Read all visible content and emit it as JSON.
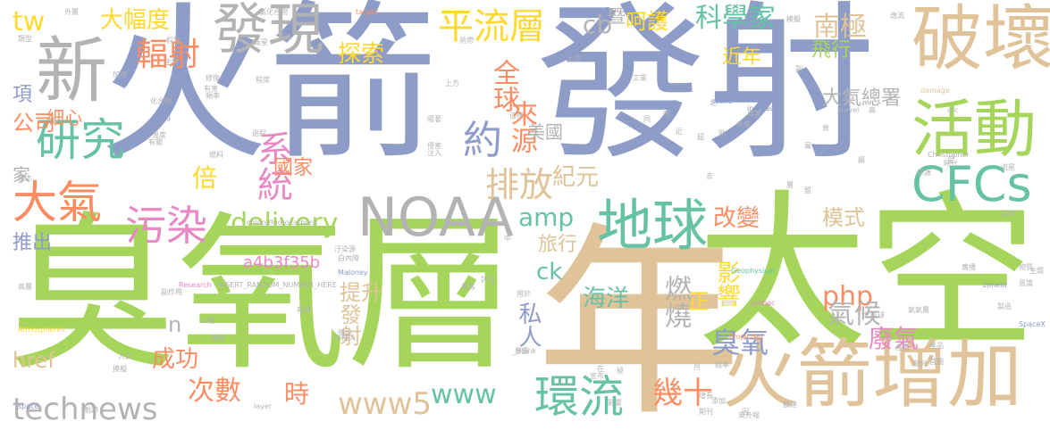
{
  "palette": {
    "blue": "#8e9cc8",
    "green": "#a5d65b",
    "tan": "#e0c398",
    "teal": "#66c2a5",
    "pink": "#e78ac3",
    "orange": "#fc8d62",
    "yellow": "#ffd92f",
    "gray": "#b3b3b3"
  },
  "words": [
    {
      "text": "火箭",
      "color": "#8e9cc8"
    },
    {
      "text": "發射",
      "color": "#8e9cc8"
    },
    {
      "text": "臭氧層",
      "color": "#a5d65b"
    },
    {
      "text": "太空",
      "color": "#a5d65b"
    },
    {
      "text": "年",
      "color": "#e0c398"
    },
    {
      "text": "破壞",
      "color": "#e0c398"
    },
    {
      "text": "火箭增加",
      "color": "#e0c398"
    },
    {
      "text": "NOAA",
      "color": "#b3b3b3"
    },
    {
      "text": "新",
      "color": "#b3b3b3"
    },
    {
      "text": "發現",
      "color": "#b3b3b3"
    },
    {
      "text": "活動",
      "color": "#a5d65b"
    },
    {
      "text": "CFCs",
      "color": "#66c2a5"
    },
    {
      "text": "地球",
      "color": "#66c2a5"
    },
    {
      "text": "環流",
      "color": "#66c2a5"
    },
    {
      "text": "研究",
      "color": "#66c2a5"
    },
    {
      "text": "大氣",
      "color": "#fc8d62"
    },
    {
      "text": "污染",
      "color": "#e78ac3"
    },
    {
      "text": "平流層",
      "color": "#ffd92f"
    },
    {
      "text": "delivery",
      "color": "#a5d65b"
    },
    {
      "text": "technews",
      "color": "#b3b3b3"
    },
    {
      "text": "www5",
      "color": "#e0c398"
    },
    {
      "text": "www",
      "color": "#66c2a5"
    },
    {
      "text": "排放",
      "color": "#e0c398"
    },
    {
      "text": "amp",
      "color": "#66c2a5"
    },
    {
      "text": "php",
      "color": "#fc8d62"
    },
    {
      "text": "約",
      "color": "#8e9cc8"
    },
    {
      "text": "輻射",
      "color": "#fc8d62"
    },
    {
      "text": "系統",
      "color": "#e78ac3"
    },
    {
      "text": "科學家",
      "color": "#66c2a5"
    },
    {
      "text": "南極",
      "color": "#e0c398"
    },
    {
      "text": "cb",
      "color": "#b3b3b3"
    },
    {
      "text": "呵護",
      "color": "#ffd92f"
    },
    {
      "text": "大幅度",
      "color": "#ffd92f"
    },
    {
      "text": "探索",
      "color": "#ffd92f"
    },
    {
      "text": "全球",
      "color": "#fc8d62"
    },
    {
      "text": "來源",
      "color": "#fc8d62"
    },
    {
      "text": "飛行",
      "color": "#a5d65b"
    },
    {
      "text": "近年",
      "color": "#ffd92f"
    },
    {
      "text": "大氣總署",
      "color": "#b3b3b3"
    },
    {
      "text": "美國",
      "color": "#b3b3b3"
    },
    {
      "text": "紀元",
      "color": "#e0c398"
    },
    {
      "text": "國家",
      "color": "#fc8d62"
    },
    {
      "text": "倍",
      "color": "#ffd92f"
    },
    {
      "text": "公司",
      "color": "#fc8d62"
    },
    {
      "text": "細心",
      "color": "#fc8d62"
    },
    {
      "text": "項",
      "color": "#8e9cc8"
    },
    {
      "text": "家",
      "color": "#b3b3b3"
    },
    {
      "text": "推出",
      "color": "#8e9cc8"
    },
    {
      "text": "tw",
      "color": "#ffd92f"
    },
    {
      "text": "暨",
      "color": "#b3b3b3"
    },
    {
      "text": "a",
      "color": "#8e9cc8"
    },
    {
      "text": "改變",
      "color": "#fc8d62"
    },
    {
      "text": "模式",
      "color": "#e0c398"
    },
    {
      "text": "影響",
      "color": "#ffd92f"
    },
    {
      "text": "氣候",
      "color": "#b3b3b3"
    },
    {
      "text": "廢氣",
      "color": "#e78ac3"
    },
    {
      "text": "臭氧",
      "color": "#8e9cc8"
    },
    {
      "text": "燃燒",
      "color": "#b3b3b3"
    },
    {
      "text": "海洋",
      "color": "#66c2a5"
    },
    {
      "text": "正",
      "color": "#ffd92f"
    },
    {
      "text": "旅行",
      "color": "#e0c398"
    },
    {
      "text": "ck",
      "color": "#66c2a5"
    },
    {
      "text": "提升",
      "color": "#e0c398"
    },
    {
      "text": "發射",
      "color": "#e0c398"
    },
    {
      "text": "私人",
      "color": "#8e9cc8"
    },
    {
      "text": "成功",
      "color": "#fc8d62"
    },
    {
      "text": "次數",
      "color": "#fc8d62"
    },
    {
      "text": "時",
      "color": "#fc8d62"
    },
    {
      "text": "幾十",
      "color": "#fc8d62"
    },
    {
      "text": "href",
      "color": "#e0c398"
    },
    {
      "text": "n",
      "color": "#b3b3b3"
    },
    {
      "text": "a4b3f35b",
      "color": "#e78ac3"
    },
    {
      "text": "INSERT_RANDOM_NUMBER_HERE",
      "color": "#b3b3b3"
    },
    {
      "text": "chlorofluorocarbons",
      "color": "#b3b3b3"
    },
    {
      "text": "Research",
      "color": "#e78ac3"
    },
    {
      "text": "Maloney",
      "color": "#8e9cc8"
    },
    {
      "text": "Atmospheres",
      "color": "#ffd92f"
    },
    {
      "text": "Geophysical",
      "color": "#66c2a5"
    },
    {
      "text": "Christopher",
      "color": "#b3b3b3"
    },
    {
      "text": "target",
      "color": "#fc8d62"
    },
    {
      "text": "ozone",
      "color": "#8e9cc8"
    },
    {
      "text": "increase",
      "color": "#8e9cc8"
    },
    {
      "text": "travel",
      "color": "#b3b3b3"
    },
    {
      "text": "damage",
      "color": "#e0c398"
    },
    {
      "text": "zoneid",
      "color": "#8e9cc8"
    },
    {
      "text": "SpaceX",
      "color": "#8e9cc8"
    },
    {
      "text": "Projected",
      "color": "#fc8d62"
    },
    {
      "text": "_blank",
      "color": "#b3b3b3"
    },
    {
      "text": "img",
      "color": "#8e9cc8"
    },
    {
      "text": "space",
      "color": "#8e9cc8"
    },
    {
      "text": "layer",
      "color": "#b3b3b3"
    },
    {
      "text": "prebac",
      "color": "#e78ac3"
    },
    {
      "text": "外層",
      "color": "#b3b3b3"
    },
    {
      "text": "氯化合物",
      "color": "#b3b3b3"
    },
    {
      "text": "類型",
      "color": "#b3b3b3"
    },
    {
      "text": "生物",
      "color": "#b3b3b3"
    },
    {
      "text": "加速",
      "color": "#b3b3b3"
    },
    {
      "text": "化合物",
      "color": "#b3b3b3"
    },
    {
      "text": "溫度",
      "color": "#b3b3b3"
    },
    {
      "text": "有關",
      "color": "#b3b3b3"
    },
    {
      "text": "修復",
      "color": "#b3b3b3"
    },
    {
      "text": "有害",
      "color": "#b3b3b3"
    },
    {
      "text": "頻率",
      "color": "#b3b3b3"
    },
    {
      "text": "衛星",
      "color": "#b3b3b3"
    },
    {
      "text": "程度",
      "color": "#b3b3b3"
    },
    {
      "text": "燃料",
      "color": "#b3b3b3"
    },
    {
      "text": "航太",
      "color": "#b3b3b3"
    },
    {
      "text": "過程",
      "color": "#b3b3b3"
    },
    {
      "text": "高層",
      "color": "#b3b3b3"
    },
    {
      "text": "副作用",
      "color": "#b3b3b3"
    },
    {
      "text": "公報",
      "color": "#b3b3b3"
    },
    {
      "text": "團隊",
      "color": "#b3b3b3"
    },
    {
      "text": "軌跡",
      "color": "#b3b3b3"
    },
    {
      "text": "入口",
      "color": "#b3b3b3"
    },
    {
      "text": "摸擬",
      "color": "#b3b3b3"
    },
    {
      "text": "北半球",
      "color": "#b3b3b3"
    },
    {
      "text": "時代",
      "color": "#b3b3b3"
    },
    {
      "text": "保護",
      "color": "#b3b3b3"
    },
    {
      "text": "廣播",
      "color": "#b3b3b3"
    },
    {
      "text": "流星",
      "color": "#b3b3b3"
    },
    {
      "text": "物質",
      "color": "#b3b3b3"
    },
    {
      "text": "意識",
      "color": "#b3b3b3"
    },
    {
      "text": "主題",
      "color": "#b3b3b3"
    },
    {
      "text": "延伸",
      "color": "#b3b3b3"
    },
    {
      "text": "首圖",
      "color": "#b3b3b3"
    },
    {
      "text": "產品",
      "color": "#b3b3b3"
    },
    {
      "text": "產量",
      "color": "#b3b3b3"
    },
    {
      "text": "標準",
      "color": "#b3b3b3"
    },
    {
      "text": "增長",
      "color": "#b3b3b3"
    },
    {
      "text": "添加",
      "color": "#b3b3b3"
    },
    {
      "text": "期刊",
      "color": "#b3b3b3"
    },
    {
      "text": "英外報",
      "color": "#b3b3b3"
    },
    {
      "text": "乘客",
      "color": "#b3b3b3"
    },
    {
      "text": "侵害",
      "color": "#b3b3b3"
    },
    {
      "text": "注入",
      "color": "#b3b3b3"
    },
    {
      "text": "工業",
      "color": "#b3b3b3"
    },
    {
      "text": "上方",
      "color": "#b3b3b3"
    },
    {
      "text": "上空",
      "color": "#b3b3b3"
    },
    {
      "text": "熱帶",
      "color": "#b3b3b3"
    },
    {
      "text": "這樣",
      "color": "#b3b3b3"
    },
    {
      "text": "隨著",
      "color": "#b3b3b3"
    },
    {
      "text": "報導",
      "color": "#b3b3b3"
    },
    {
      "text": "傳說",
      "color": "#b3b3b3"
    },
    {
      "text": "半球人",
      "color": "#b3b3b3"
    },
    {
      "text": "汙染源",
      "color": "#b3b3b3"
    },
    {
      "text": "白內障",
      "color": "#b3b3b3"
    },
    {
      "text": "唯一",
      "color": "#b3b3b3"
    },
    {
      "text": "用於",
      "color": "#b3b3b3"
    },
    {
      "text": "評估",
      "color": "#b3b3b3"
    },
    {
      "text": "宣布",
      "color": "#b3b3b3"
    },
    {
      "text": "影響",
      "color": "#b3b3b3"
    },
    {
      "text": "暴露",
      "color": "#b3b3b3"
    },
    {
      "text": "再度",
      "color": "#b3b3b3"
    },
    {
      "text": "未來",
      "color": "#b3b3b3"
    },
    {
      "text": "擴建",
      "color": "#b3b3b3"
    },
    {
      "text": "額外",
      "color": "#b3b3b3"
    },
    {
      "text": "氣氣層",
      "color": "#b3b3b3"
    },
    {
      "text": "製造",
      "color": "#b3b3b3"
    },
    {
      "text": "逸流",
      "color": "#b3b3b3"
    },
    {
      "text": "模擬",
      "color": "#b3b3b3"
    },
    {
      "text": "假設",
      "color": "#b3b3b3"
    },
    {
      "text": "副",
      "color": "#b3b3b3"
    },
    {
      "text": "極",
      "color": "#b3b3b3"
    },
    {
      "text": "同",
      "color": "#b3b3b3"
    },
    {
      "text": "北",
      "color": "#b3b3b3"
    },
    {
      "text": "高",
      "color": "#b3b3b3"
    },
    {
      "text": "層",
      "color": "#b3b3b3"
    },
    {
      "text": "中",
      "color": "#b3b3b3"
    },
    {
      "text": "近",
      "color": "#b3b3b3"
    },
    {
      "text": "超",
      "color": "#b3b3b3"
    },
    {
      "text": "勁",
      "color": "#b3b3b3"
    },
    {
      "text": "受",
      "color": "#b3b3b3"
    },
    {
      "text": "因",
      "color": "#b3b3b3"
    },
    {
      "text": "在",
      "color": "#b3b3b3"
    },
    {
      "text": "去",
      "color": "#b3b3b3"
    },
    {
      "text": "月",
      "color": "#b3b3b3"
    },
    {
      "text": "嗎",
      "color": "#b3b3b3"
    },
    {
      "text": "衰",
      "color": "#b3b3b3"
    },
    {
      "text": "萬",
      "color": "#b3b3b3"
    },
    {
      "text": "續",
      "color": "#b3b3b3"
    },
    {
      "text": "盟",
      "color": "#b3b3b3"
    },
    {
      "text": "ufc",
      "color": "#b3b3b3"
    },
    {
      "text": "ntc",
      "color": "#b3b3b3"
    },
    {
      "text": "ccl",
      "color": "#b3b3b3"
    },
    {
      "text": "aid",
      "color": "#b3b3b3"
    },
    {
      "text": "nps",
      "color": "#b3b3b3"
    }
  ]
}
